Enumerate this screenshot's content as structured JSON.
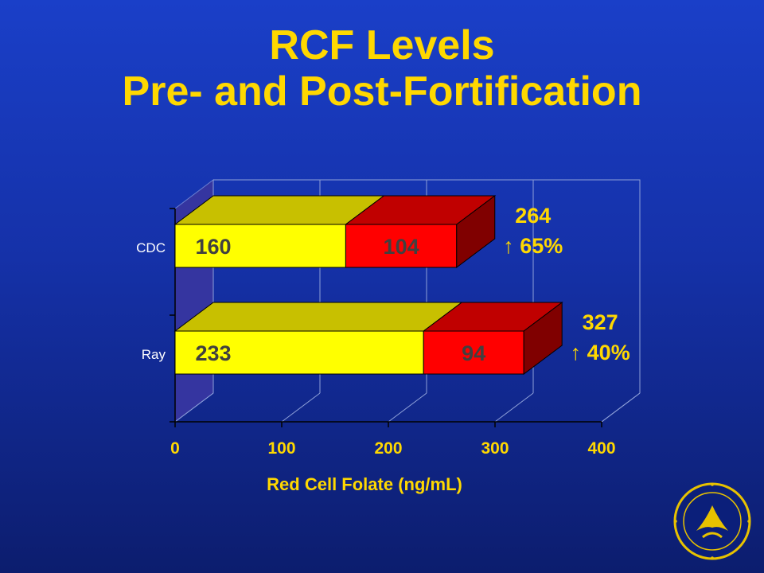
{
  "slide": {
    "title_line1": "RCF Levels",
    "title_line2": "Pre- and Post-Fortification"
  },
  "chart_data": {
    "type": "bar",
    "orientation": "horizontal",
    "stacked": true,
    "three_d": true,
    "categories": [
      "CDC",
      "Ray"
    ],
    "series": [
      {
        "values": [
          160,
          233
        ],
        "color": "#ffff00",
        "top_color": "#c8c000",
        "side_color": "#c8c000"
      },
      {
        "values": [
          104,
          94
        ],
        "color": "#ff0000",
        "top_color": "#c00000",
        "side_color": "#800000"
      }
    ],
    "totals": [
      264,
      327
    ],
    "annotations": [
      {
        "total": "264",
        "change": "↑ 65%"
      },
      {
        "total": "327",
        "change": "↑ 40%"
      }
    ],
    "xlabel": "Red Cell Folate (ng/mL)",
    "ylabel": "",
    "xlim": [
      0,
      400
    ],
    "xticks": [
      "0",
      "100",
      "200",
      "300",
      "400"
    ],
    "grid": true,
    "colors": {
      "text": "#ffd800",
      "axis_text": "#ffffff",
      "bar_label": "#404040",
      "wall": "#3535a0",
      "grid": "#8ea0d8"
    }
  }
}
